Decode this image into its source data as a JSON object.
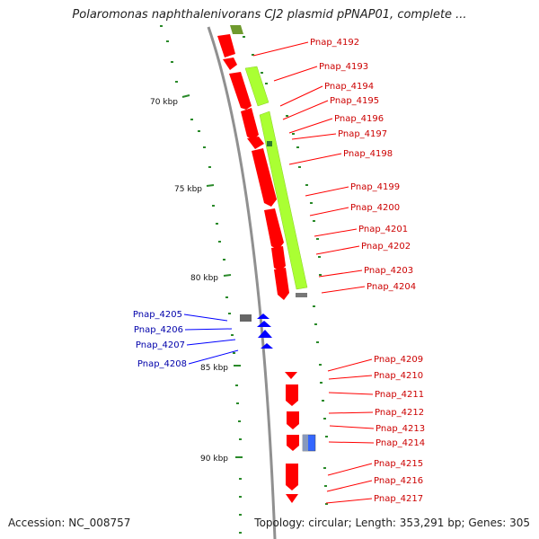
{
  "title": "Polaromonas naphthalenivorans CJ2 plasmid pPNAP01, complete ...",
  "footer": {
    "accession": "Accession: NC_008757",
    "summary": "Topology: circular; Length: 353,291 bp; Genes: 305"
  },
  "scale_labels": [
    "70 kbp",
    "75 kbp",
    "80 kbp",
    "85 kbp",
    "90 kbp"
  ],
  "genes_forward": [
    "Pnap_4192",
    "Pnap_4193",
    "Pnap_4194",
    "Pnap_4195",
    "Pnap_4196",
    "Pnap_4197",
    "Pnap_4198",
    "Pnap_4199",
    "Pnap_4200",
    "Pnap_4201",
    "Pnap_4202",
    "Pnap_4203",
    "Pnap_4204",
    "Pnap_4209",
    "Pnap_4210",
    "Pnap_4211",
    "Pnap_4212",
    "Pnap_4213",
    "Pnap_4214",
    "Pnap_4215",
    "Pnap_4216",
    "Pnap_4217"
  ],
  "genes_reverse": [
    "Pnap_4205",
    "Pnap_4206",
    "Pnap_4207",
    "Pnap_4208"
  ],
  "colors": {
    "forward_cds": "#ff0000",
    "reverse_cds": "#0000ff",
    "forward_label": "#cc0000",
    "reverse_label": "#0000aa",
    "other_feature": "#aaff33",
    "backbone": "#909090",
    "tick": "#2a8a2a"
  }
}
